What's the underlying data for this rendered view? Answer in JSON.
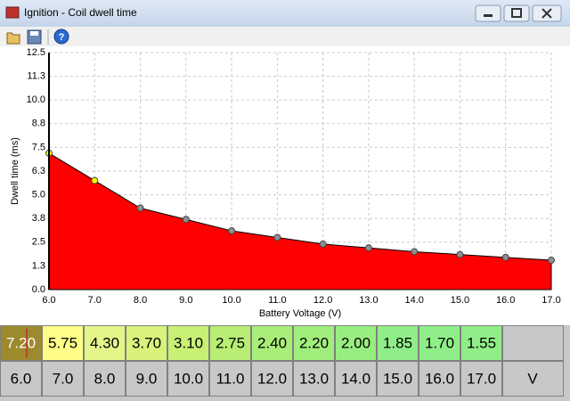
{
  "window": {
    "title": "Ignition - Coil dwell time"
  },
  "chart_data": {
    "type": "area",
    "x": [
      6,
      7,
      8,
      9,
      10,
      11,
      12,
      13,
      14,
      15,
      16,
      17
    ],
    "values": [
      7.2,
      5.75,
      4.3,
      3.7,
      3.1,
      2.75,
      2.4,
      2.2,
      2.0,
      1.85,
      1.7,
      1.55
    ],
    "value_labels": [
      "7.20",
      "5.75",
      "4.30",
      "3.70",
      "3.10",
      "2.75",
      "2.40",
      "2.20",
      "2.00",
      "1.85",
      "1.70",
      "1.55"
    ],
    "color": "#ff0000",
    "point_colors": [
      "#ffff00",
      "#ffff00",
      "#909090",
      "#909090",
      "#909090",
      "#909090",
      "#909090",
      "#909090",
      "#909090",
      "#909090",
      "#909090",
      "#909090"
    ],
    "x_label": "Battery Voltage (V)",
    "y_label": "Dwell time (ms)",
    "xlim": [
      6,
      17
    ],
    "ylim": [
      0,
      12.5
    ],
    "xticks": [
      {
        "value": 6,
        "label": "6.0"
      },
      {
        "value": 7,
        "label": "7.0"
      },
      {
        "value": 8,
        "label": "8.0"
      },
      {
        "value": 9,
        "label": "9.0"
      },
      {
        "value": 10,
        "label": "10.0"
      },
      {
        "value": 11,
        "label": "11.0"
      },
      {
        "value": 12,
        "label": "12.0"
      },
      {
        "value": 13,
        "label": "13.0"
      },
      {
        "value": 14,
        "label": "14.0"
      },
      {
        "value": 15,
        "label": "15.0"
      },
      {
        "value": 16,
        "label": "16.0"
      },
      {
        "value": 17,
        "label": "17.0"
      }
    ],
    "yticks": [
      {
        "value": 0,
        "label": "0.0"
      },
      {
        "value": 1.25,
        "label": "1.3"
      },
      2.5,
      {
        "value": 3.75,
        "label": "3.8"
      },
      {
        "value": 5,
        "label": "5.0"
      },
      {
        "value": 6.25,
        "label": "6.3"
      },
      7.5,
      {
        "value": 8.75,
        "label": "8.8"
      },
      {
        "value": 10,
        "label": "10.0"
      },
      {
        "value": 11.25,
        "label": "11.3"
      },
      12.5
    ],
    "grid": true
  },
  "table": {
    "unit": "V",
    "cell_colors": [
      "#9c8a2c",
      "#ffff88",
      "#e6f58a",
      "#d8f27c",
      "#c8f074",
      "#b8ee74",
      "#a8ee78",
      "#a0ee7c",
      "#98ee80",
      "#90ee88",
      "#90ee88",
      "#90ee88"
    ]
  }
}
